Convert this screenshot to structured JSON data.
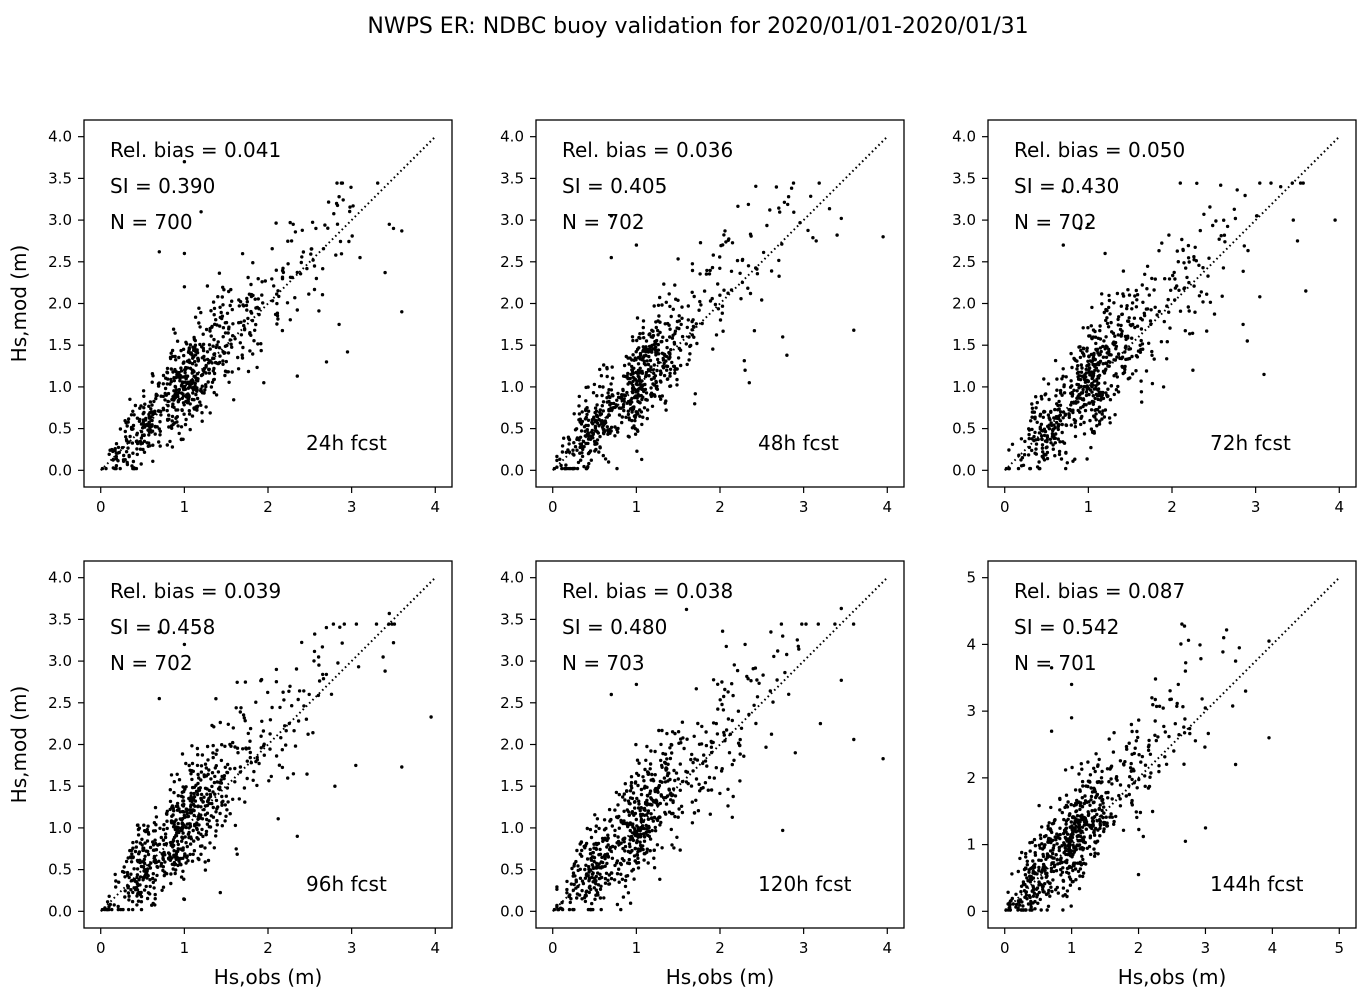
{
  "figure_title": "NWPS ER: NDBC buoy validation for 2020/01/01-2020/01/31",
  "colors": {
    "points": "#000000",
    "axes": "#000000",
    "background": "#ffffff"
  },
  "chart_data": [
    {
      "type": "scatter",
      "forecast_label": "24h fcst",
      "stats": {
        "rel_bias": "Rel. bias =  0.041",
        "si": "SI =  0.390",
        "n": "N = 700"
      },
      "xlabel": "",
      "ylabel": "Hs,mod (m)",
      "xlim": [
        -0.2,
        4.2
      ],
      "ylim": [
        -0.2,
        4.2
      ],
      "xticks": [
        0,
        1,
        2,
        3,
        4
      ],
      "xtick_labels": [
        "0",
        "1",
        "2",
        "3",
        "4"
      ],
      "yticks": [
        0,
        0.5,
        1,
        1.5,
        2,
        2.5,
        3,
        3.5,
        4
      ],
      "ytick_labels": [
        "0.0",
        "0.5",
        "1.0",
        "1.5",
        "2.0",
        "2.5",
        "3.0",
        "3.5",
        "4.0"
      ],
      "one_to_one_max": 4,
      "sample": {
        "n": 700,
        "bias": 0.041,
        "scatter": 0.28,
        "seed": 11
      },
      "points": [
        [
          0.02,
          0.02
        ],
        [
          1.0,
          3.7
        ],
        [
          1.2,
          3.1
        ],
        [
          2.85,
          3.28
        ],
        [
          3.45,
          2.95
        ],
        [
          3.5,
          2.9
        ],
        [
          3.6,
          2.87
        ],
        [
          3.6,
          1.9
        ],
        [
          2.85,
          1.75
        ],
        [
          2.7,
          1.3
        ],
        [
          2.95,
          1.42
        ],
        [
          2.35,
          1.13
        ],
        [
          1.95,
          1.05
        ],
        [
          3.1,
          2.55
        ],
        [
          3.4,
          2.37
        ],
        [
          0.7,
          2.62
        ],
        [
          1.0,
          2.6
        ],
        [
          1.0,
          2.2
        ]
      ]
    },
    {
      "type": "scatter",
      "forecast_label": "48h fcst",
      "stats": {
        "rel_bias": "Rel. bias =  0.036",
        "si": "SI =  0.405",
        "n": "N = 702"
      },
      "xlabel": "",
      "ylabel": "",
      "xlim": [
        -0.2,
        4.2
      ],
      "ylim": [
        -0.2,
        4.2
      ],
      "xticks": [
        0,
        1,
        2,
        3,
        4
      ],
      "xtick_labels": [
        "0",
        "1",
        "2",
        "3",
        "4"
      ],
      "yticks": [
        0,
        0.5,
        1,
        1.5,
        2,
        2.5,
        3,
        3.5,
        4
      ],
      "ytick_labels": [
        "0.0",
        "0.5",
        "1.0",
        "1.5",
        "2.0",
        "2.5",
        "3.0",
        "3.5",
        "4.0"
      ],
      "one_to_one_max": 4,
      "sample": {
        "n": 702,
        "bias": 0.036,
        "scatter": 0.3,
        "seed": 23
      },
      "points": [
        [
          0.02,
          0.02
        ],
        [
          0.7,
          3.05
        ],
        [
          2.82,
          3.28
        ],
        [
          3.45,
          3.02
        ],
        [
          3.95,
          2.8
        ],
        [
          3.6,
          1.68
        ],
        [
          2.75,
          1.6
        ],
        [
          2.8,
          1.38
        ],
        [
          2.3,
          1.2
        ],
        [
          2.35,
          1.05
        ],
        [
          3.15,
          2.75
        ],
        [
          3.4,
          2.82
        ],
        [
          0.7,
          2.55
        ],
        [
          1.0,
          2.7
        ]
      ]
    },
    {
      "type": "scatter",
      "forecast_label": "72h fcst",
      "stats": {
        "rel_bias": "Rel. bias =  0.050",
        "si": "SI =  0.430",
        "n": "N = 702"
      },
      "xlabel": "",
      "ylabel": "",
      "xlim": [
        -0.2,
        4.2
      ],
      "ylim": [
        -0.2,
        4.2
      ],
      "xticks": [
        0,
        1,
        2,
        3,
        4
      ],
      "xtick_labels": [
        "0",
        "1",
        "2",
        "3",
        "4"
      ],
      "yticks": [
        0,
        0.5,
        1,
        1.5,
        2,
        2.5,
        3,
        3.5,
        4
      ],
      "ytick_labels": [
        "0.0",
        "0.5",
        "1.0",
        "1.5",
        "2.0",
        "2.5",
        "3.0",
        "3.5",
        "4.0"
      ],
      "one_to_one_max": 4,
      "sample": {
        "n": 702,
        "bias": 0.05,
        "scatter": 0.32,
        "seed": 37
      },
      "points": [
        [
          0.02,
          0.02
        ],
        [
          0.7,
          3.35
        ],
        [
          3.3,
          3.4
        ],
        [
          3.45,
          3.0
        ],
        [
          3.95,
          3.0
        ],
        [
          3.5,
          2.75
        ],
        [
          3.6,
          2.15
        ],
        [
          3.1,
          1.15
        ],
        [
          2.85,
          1.75
        ],
        [
          2.9,
          1.55
        ],
        [
          2.25,
          1.2
        ],
        [
          1.9,
          1.0
        ],
        [
          3.05,
          2.08
        ],
        [
          0.9,
          2.9
        ],
        [
          1.0,
          2.95
        ],
        [
          0.7,
          2.7
        ],
        [
          1.2,
          2.6
        ]
      ]
    },
    {
      "type": "scatter",
      "forecast_label": "96h fcst",
      "stats": {
        "rel_bias": "Rel. bias =  0.039",
        "si": "SI =  0.458",
        "n": "N = 702"
      },
      "xlabel": "Hs,obs (m)",
      "ylabel": "Hs,mod (m)",
      "xlim": [
        -0.2,
        4.2
      ],
      "ylim": [
        -0.2,
        4.2
      ],
      "xticks": [
        0,
        1,
        2,
        3,
        4
      ],
      "xtick_labels": [
        "0",
        "1",
        "2",
        "3",
        "4"
      ],
      "yticks": [
        0,
        0.5,
        1,
        1.5,
        2,
        2.5,
        3,
        3.5,
        4
      ],
      "ytick_labels": [
        "0.0",
        "0.5",
        "1.0",
        "1.5",
        "2.0",
        "2.5",
        "3.0",
        "3.5",
        "4.0"
      ],
      "one_to_one_max": 4,
      "sample": {
        "n": 702,
        "bias": 0.039,
        "scatter": 0.34,
        "seed": 53
      },
      "points": [
        [
          0.02,
          0.02
        ],
        [
          0.7,
          3.35
        ],
        [
          3.45,
          3.57
        ],
        [
          3.5,
          3.22
        ],
        [
          3.4,
          2.88
        ],
        [
          3.95,
          2.33
        ],
        [
          3.6,
          1.73
        ],
        [
          3.05,
          1.75
        ],
        [
          2.65,
          3.17
        ],
        [
          2.1,
          2.9
        ],
        [
          0.7,
          2.55
        ],
        [
          1.0,
          3.2
        ],
        [
          2.8,
          1.5
        ],
        [
          2.35,
          0.9
        ]
      ]
    },
    {
      "type": "scatter",
      "forecast_label": "120h fcst",
      "stats": {
        "rel_bias": "Rel. bias =  0.038",
        "si": "SI =  0.480",
        "n": "N = 703"
      },
      "xlabel": "Hs,obs (m)",
      "ylabel": "",
      "xlim": [
        -0.2,
        4.2
      ],
      "ylim": [
        -0.2,
        4.2
      ],
      "xticks": [
        0,
        1,
        2,
        3,
        4
      ],
      "xtick_labels": [
        "0",
        "1",
        "2",
        "3",
        "4"
      ],
      "yticks": [
        0,
        0.5,
        1,
        1.5,
        2,
        2.5,
        3,
        3.5,
        4
      ],
      "ytick_labels": [
        "0.0",
        "0.5",
        "1.0",
        "1.5",
        "2.0",
        "2.5",
        "3.0",
        "3.5",
        "4.0"
      ],
      "one_to_one_max": 4,
      "sample": {
        "n": 703,
        "bias": 0.038,
        "scatter": 0.35,
        "seed": 71
      },
      "points": [
        [
          0.02,
          0.02
        ],
        [
          1.6,
          3.62
        ],
        [
          3.45,
          3.63
        ],
        [
          3.45,
          2.77
        ],
        [
          3.6,
          2.06
        ],
        [
          3.95,
          1.83
        ],
        [
          2.75,
          0.97
        ],
        [
          2.3,
          3.2
        ],
        [
          2.75,
          3.3
        ],
        [
          2.9,
          1.9
        ],
        [
          3.2,
          2.25
        ],
        [
          0.7,
          2.6
        ],
        [
          1.0,
          2.72
        ]
      ]
    },
    {
      "type": "scatter",
      "forecast_label": "144h fcst",
      "stats": {
        "rel_bias": "Rel. bias =  0.087",
        "si": "SI =  0.542",
        "n": "N = 701"
      },
      "xlabel": "Hs,obs (m)",
      "ylabel": "",
      "xlim": [
        -0.25,
        5.25
      ],
      "ylim": [
        -0.25,
        5.25
      ],
      "xticks": [
        0,
        1,
        2,
        3,
        4,
        5
      ],
      "xtick_labels": [
        "0",
        "1",
        "2",
        "3",
        "4",
        "5"
      ],
      "yticks": [
        0,
        1,
        2,
        3,
        4,
        5
      ],
      "ytick_labels": [
        "0",
        "1",
        "2",
        "3",
        "4",
        "5"
      ],
      "one_to_one_max": 5,
      "sample": {
        "n": 701,
        "bias": 0.087,
        "scatter": 0.38,
        "seed": 97
      },
      "points": [
        [
          0.02,
          0.02
        ],
        [
          0.7,
          3.65
        ],
        [
          3.95,
          4.05
        ],
        [
          3.45,
          3.75
        ],
        [
          3.6,
          3.3
        ],
        [
          3.45,
          2.2
        ],
        [
          3.95,
          2.6
        ],
        [
          2.7,
          3.6
        ],
        [
          2.2,
          3.2
        ],
        [
          3.0,
          1.25
        ],
        [
          2.7,
          1.05
        ],
        [
          2.0,
          0.55
        ],
        [
          0.7,
          2.7
        ],
        [
          1.0,
          3.4
        ],
        [
          1.0,
          2.9
        ]
      ]
    }
  ]
}
